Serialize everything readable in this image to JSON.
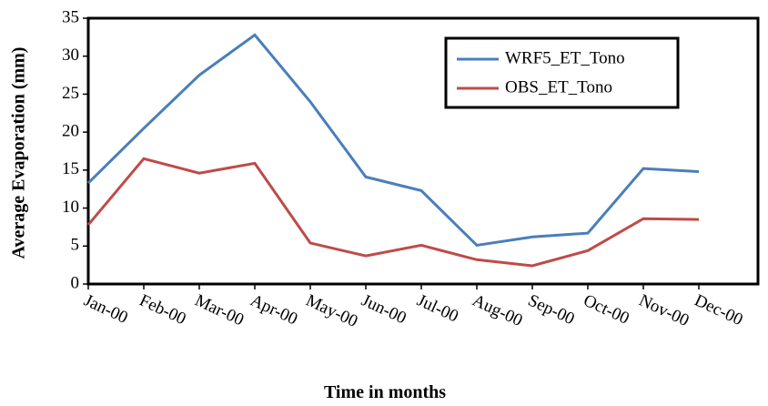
{
  "chart_data": {
    "type": "line",
    "x_label": "Time in months",
    "y_label": "Average Evaporation (mm)",
    "categories": [
      "Jan-00",
      "Feb-00",
      "Mar-00",
      "Apr-00",
      "May-00",
      "Jun-00",
      "Jul-00",
      "Aug-00",
      "Sep-00",
      "Oct-00",
      "Nov-00",
      "Dec-00"
    ],
    "series": [
      {
        "name": "WRF5_ET_Tono",
        "color": "#4a7ebb",
        "values": [
          13.3,
          20.5,
          27.5,
          32.8,
          24.0,
          14.1,
          12.3,
          5.1,
          6.2,
          6.7,
          15.2,
          14.8
        ]
      },
      {
        "name": "OBS_ET_Tono",
        "color": "#be4b48",
        "values": [
          7.8,
          16.5,
          14.6,
          15.9,
          5.4,
          3.7,
          5.1,
          3.2,
          2.4,
          4.4,
          8.6,
          8.5
        ]
      }
    ],
    "ylim": [
      0,
      35
    ],
    "yticks": [
      0,
      5,
      10,
      15,
      20,
      25,
      30,
      35
    ],
    "legend": "top-right"
  }
}
